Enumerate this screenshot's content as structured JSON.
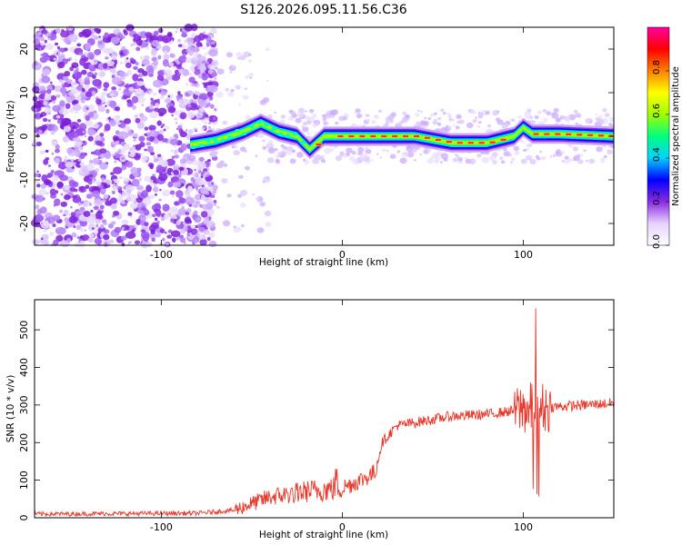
{
  "title": "S126.2026.095.11.56.C36",
  "chart_data": [
    {
      "type": "heatmap",
      "xlabel": "Height of straight line (km)",
      "ylabel": "Frequency (Hz)",
      "xlim": [
        -170,
        150
      ],
      "ylim": [
        -25,
        25
      ],
      "x_ticks": [
        -100,
        0,
        100
      ],
      "y_ticks": [
        20,
        10,
        0,
        -10,
        -20
      ],
      "colorbar": {
        "label": "Normalized spectral amplitude",
        "range": [
          0,
          1
        ],
        "ticks": [
          "0.0",
          "0.2",
          "0.4",
          "0.6",
          "0.8"
        ],
        "colors": [
          "#ffffff",
          "#e6d2ff",
          "#8a2be2",
          "#0000ff",
          "#00d2ff",
          "#00ff80",
          "#a0ff00",
          "#ffff00",
          "#ff8000",
          "#ff0000",
          "#ff00a0"
        ]
      },
      "ridge": {
        "description_x": [
          -84,
          -70,
          -55,
          -45,
          -35,
          -25,
          -18,
          -10,
          0,
          20,
          40,
          60,
          80,
          95,
          100,
          105,
          120,
          150
        ],
        "frequency_hz": [
          -2,
          -1,
          1,
          3,
          1,
          0,
          -3,
          0,
          0,
          0,
          0,
          -1.5,
          -1.5,
          0,
          2,
          0.5,
          0.5,
          0
        ]
      }
    },
    {
      "type": "line",
      "xlabel": "Height of straight line (km)",
      "ylabel": "SNR (10 * v/v)",
      "xlim": [
        -170,
        150
      ],
      "ylim": [
        0,
        580
      ],
      "x_ticks": [
        -100,
        0,
        100
      ],
      "y_ticks": [
        0,
        100,
        200,
        300,
        400,
        500
      ],
      "color": "#e8382c",
      "trend_x": [
        -170,
        -80,
        -60,
        -40,
        -20,
        0,
        10,
        18,
        22,
        30,
        60,
        80,
        95,
        100,
        150
      ],
      "trend_y": [
        10,
        12,
        20,
        55,
        70,
        80,
        100,
        120,
        200,
        245,
        270,
        275,
        285,
        290,
        305
      ]
    }
  ]
}
